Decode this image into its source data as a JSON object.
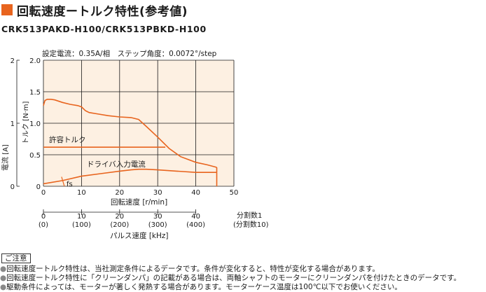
{
  "title": "回転速度ートルク特性(参考値)",
  "model": "CRK513PAKD-H100/CRK513PBKD-H100",
  "conditions": "設定電流：0.35A/相　ステップ角度：0.0072°/step",
  "colors": {
    "accent": "#e8641e",
    "plot_bg": "#fdf0e2",
    "curve": "#e8641e",
    "grid": "#1a1a1a"
  },
  "notes": {
    "heading": "ご注意",
    "bullet": "●",
    "items": [
      "回転速度ートルク特性は、当社測定条件によるデータです。条件が変化すると、特性が変化する場合があります。",
      "回転速度ートルク特性に「クリーンダンパ」の記載がある場合は、両軸シャフトのモーターにクリーンダンパを付けたときのデータです。",
      "駆動条件によっては、モーターが著しく発熱する場合があります。モーターケース温度は100℃以下でお使いください。"
    ]
  },
  "chart_data": {
    "type": "line",
    "xlabel": "回転速度 [r/min]",
    "ylabel": "トルク [N·m]",
    "y2label": "電流 [A]",
    "xlim": [
      0,
      50
    ],
    "ylim": [
      0,
      2.0
    ],
    "y2lim": [
      0,
      2
    ],
    "x_ticks": [
      "0",
      "10",
      "20",
      "30",
      "40",
      "50"
    ],
    "y_ticks": [
      "0",
      "0.5",
      "1.0",
      "1.5",
      "2.0"
    ],
    "y2_ticks": [
      "0",
      "1",
      "2"
    ],
    "grid": true,
    "series": [
      {
        "name": "",
        "x": [
          0,
          0.4,
          1,
          2,
          3,
          5,
          7,
          9,
          10,
          11,
          12,
          14,
          17,
          20,
          23,
          25,
          27,
          30,
          33,
          36,
          40,
          43,
          45.5
        ],
        "y": [
          1.28,
          1.36,
          1.38,
          1.38,
          1.37,
          1.33,
          1.3,
          1.28,
          1.26,
          1.2,
          1.17,
          1.15,
          1.12,
          1.1,
          1.09,
          1.06,
          0.95,
          0.78,
          0.6,
          0.47,
          0.38,
          0.34,
          0.3
        ]
      },
      {
        "name": "",
        "x": [
          0,
          5,
          10,
          15,
          20,
          23,
          25,
          27,
          30,
          35,
          40,
          43,
          45.5
        ],
        "y": [
          0.04,
          0.09,
          0.16,
          0.2,
          0.24,
          0.26,
          0.27,
          0.27,
          0.26,
          0.24,
          0.22,
          0.22,
          0.22
        ]
      }
    ],
    "allowable_torque": {
      "label": "許容トルク",
      "value": 0.62,
      "x_end": 32
    },
    "driver_current_label": "ドライバ入力電流",
    "fs": {
      "label": "fs",
      "x": 5.5,
      "y": 0.05
    },
    "pulse_axis": {
      "xlabel": "パルス速度 [kHz]",
      "ticks": [
        {
          "x": 0,
          "top": "0",
          "bottom": "(0)"
        },
        {
          "x": 10,
          "top": "10",
          "bottom": "(100)"
        },
        {
          "x": 20,
          "top": "20",
          "bottom": "(200)"
        },
        {
          "x": 30,
          "top": "30",
          "bottom": "(300)"
        },
        {
          "x": 40,
          "top": "40",
          "bottom": "(400)"
        }
      ],
      "div1_label": "分割数1",
      "div10_label": "(分割数10)"
    }
  }
}
